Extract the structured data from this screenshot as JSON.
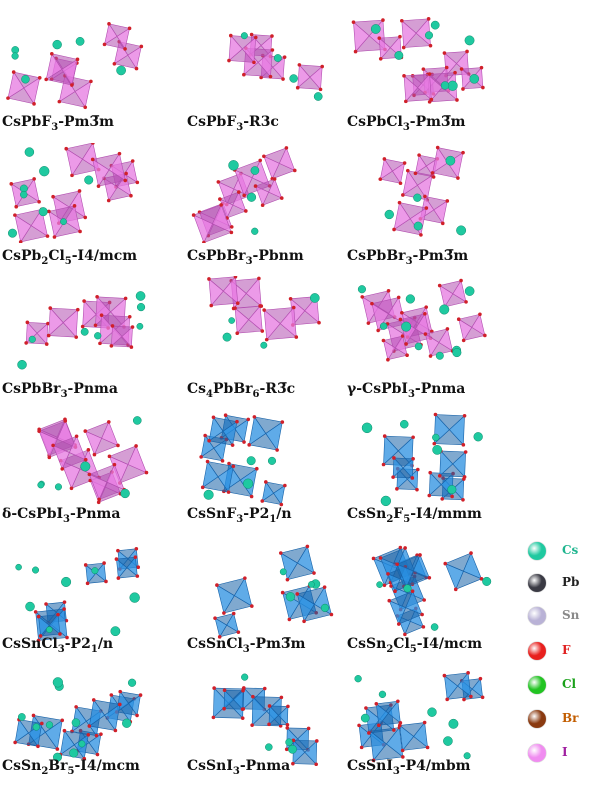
{
  "structures": [
    {
      "label": "CsPbF₃-Pm3̅m",
      "family": "Pb"
    },
    {
      "label": "CsPbF₃-R3c",
      "family": "Pb"
    },
    {
      "label": "CsPbCl₃-Pm3̅m",
      "family": "Pb"
    },
    {
      "label": "CsPb₂Cl₅-I4/mcm",
      "family": "Pb"
    },
    {
      "label": "CsPbBr₃-Pbnm",
      "family": "Pb"
    },
    {
      "label": "CsPbBr₃-Pm3̅m",
      "family": "Pb"
    },
    {
      "label": "CsPbBr₃-Pnma",
      "family": "Pb"
    },
    {
      "label": "Cs₄PbBr₆-R3̅c",
      "family": "Pb"
    },
    {
      "label": "γ-CsPbI₃-Pnma",
      "family": "Pb"
    },
    {
      "label": "δ-CsPbI₃-Pnma",
      "family": "Pb"
    },
    {
      "label": "CsSnF₃-P2₁/n",
      "family": "Sn"
    },
    {
      "label": "CsSn₂F₅-I4/mmm",
      "family": "Sn"
    },
    {
      "label": "CsSnCl₃-P2₁/n",
      "family": "Sn"
    },
    {
      "label": "CsSnCl₃-Pm3̅m",
      "family": "Sn"
    },
    {
      "label": "CsSn₂Cl₅-I4/mcm",
      "family": "Sn"
    },
    {
      "label": "CsSn₂Br₅-I4/mcm",
      "family": "Sn"
    },
    {
      "label": "CsSnI₃-Pnma",
      "family": "Sn"
    },
    {
      "label": "CsSnI₃-P4/mbm",
      "family": "Sn"
    }
  ],
  "legend": [
    {
      "symbol": "Cs",
      "ball_color": "#1fc9a0",
      "text_color": "#1fb58f"
    },
    {
      "symbol": "Pb",
      "ball_color": "#3a3a44",
      "text_color": "#222222"
    },
    {
      "symbol": "Sn",
      "ball_color": "#b9b2d6",
      "text_color": "#8a8a8a"
    },
    {
      "symbol": "F",
      "ball_color": "#e8201e",
      "text_color": "#e02020"
    },
    {
      "symbol": "Cl",
      "ball_color": "#22c422",
      "text_color": "#1aa01a"
    },
    {
      "symbol": "Br",
      "ball_color": "#8a3a10",
      "text_color": "#c25d00"
    },
    {
      "symbol": "I",
      "ball_color": "#f08cf0",
      "text_color": "#a020a0"
    }
  ],
  "colors": {
    "pb_octahedron": "#e678e0",
    "pb_octahedron_dark": "#b24fb0",
    "sn_octahedron": "#2a8fe0",
    "sn_octahedron_dark": "#1762a8",
    "cs_atom": "#1fc9a0"
  }
}
